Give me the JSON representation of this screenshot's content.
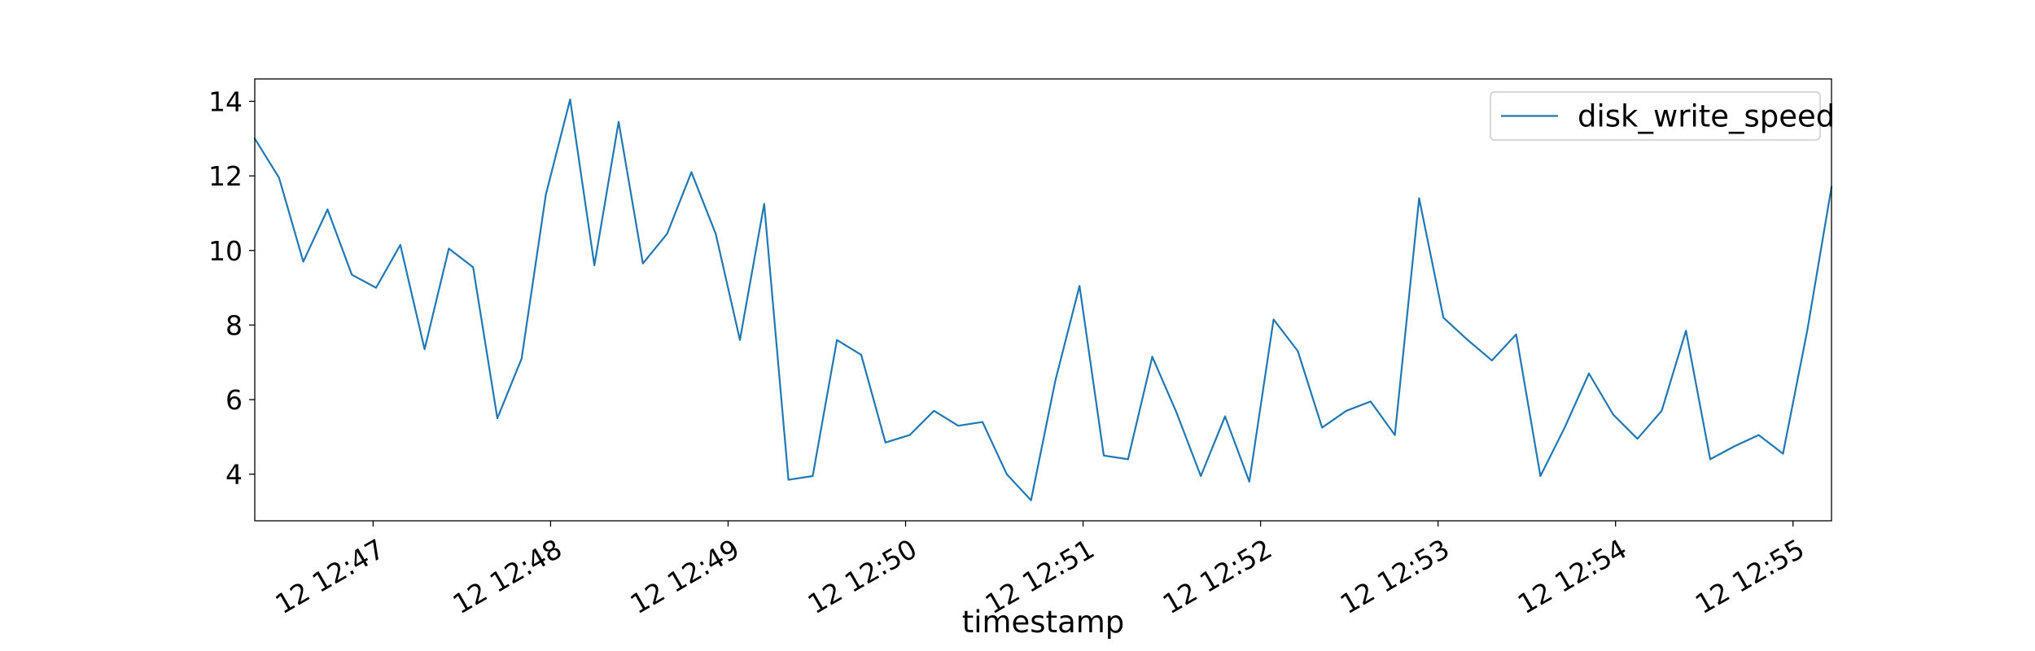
{
  "chart_data": {
    "type": "line",
    "title": "",
    "xlabel": "timestamp",
    "ylabel": "",
    "x_start": "12 12:46:20",
    "x_interval_seconds": 8.2,
    "x_ticks": [
      "12 12:47",
      "12 12:48",
      "12 12:49",
      "12 12:50",
      "12 12:51",
      "12 12:52",
      "12 12:53",
      "12 12:54",
      "12 12:55"
    ],
    "y_ticks": [
      4,
      6,
      8,
      10,
      12,
      14
    ],
    "ylim": [
      2.75,
      14.6
    ],
    "grid": false,
    "legend": {
      "position": "top-right"
    },
    "series": [
      {
        "name": "disk_write_speed",
        "color": "#1f77b4",
        "values": [
          13.0,
          11.95,
          9.7,
          11.1,
          9.35,
          9.0,
          10.15,
          7.35,
          10.05,
          9.55,
          5.5,
          7.1,
          11.5,
          14.05,
          9.6,
          13.45,
          9.65,
          10.45,
          12.1,
          10.45,
          7.6,
          11.25,
          3.85,
          3.95,
          7.6,
          7.2,
          4.85,
          5.05,
          5.7,
          5.3,
          5.4,
          4.0,
          3.3,
          6.5,
          9.05,
          4.5,
          4.4,
          7.15,
          5.65,
          3.95,
          5.55,
          3.8,
          8.15,
          7.3,
          5.25,
          5.7,
          5.95,
          5.05,
          11.4,
          8.2,
          7.6,
          7.05,
          7.75,
          3.95,
          5.25,
          6.7,
          5.6,
          4.95,
          5.7,
          7.85,
          4.4,
          4.75,
          5.05,
          4.55,
          7.85,
          11.7
        ]
      }
    ]
  }
}
